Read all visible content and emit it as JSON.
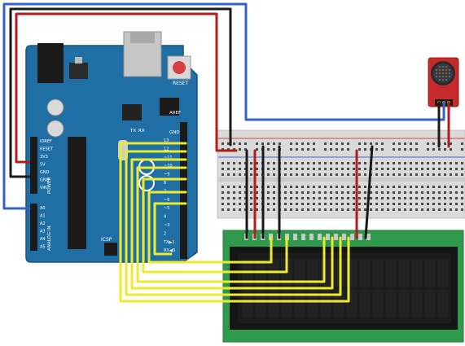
{
  "arduino": {
    "reset_label": "RESET",
    "aref_label": "AREF",
    "gnd_label": "GND",
    "icsp_label": "ICSP",
    "tx_label": "TX",
    "rx_label": "RX",
    "power_section_label": "POWER",
    "analog_section_label": "ANALOG IN",
    "power_pins": [
      "IOREF",
      "RESET",
      "3V3",
      "5V",
      "GND",
      "GND",
      "VIN"
    ],
    "analog_pins": [
      "A0",
      "A1",
      "A2",
      "A3",
      "A4",
      "A5"
    ],
    "digital_pins": [
      "13",
      "12",
      "~11",
      "~10",
      "~9",
      "8",
      "7",
      "~6",
      "~5",
      "4",
      "~3",
      "2",
      "TX▶1",
      "RX◀0"
    ]
  },
  "colors": {
    "board": "#1f6fa5",
    "breadboard": "#dcdcdc",
    "lcd_pcb": "#2f9a4c",
    "lcd_screen": "#111111",
    "mic_pcb": "#c62a2a",
    "wire_blue": "#2f63c9",
    "wire_red": "#b11d1d",
    "wire_black": "#1a1a1a",
    "wire_yellow": "#ecec2e"
  },
  "icons": {
    "microphone": "microphone-module-icon",
    "usb": "usb-connector-icon",
    "power_jack": "power-jack-icon"
  }
}
